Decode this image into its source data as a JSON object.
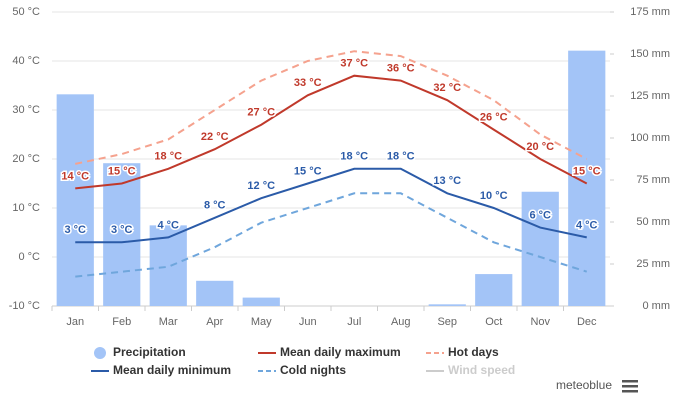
{
  "chart_data": {
    "type": "combo",
    "categories": [
      "Jan",
      "Feb",
      "Mar",
      "Apr",
      "May",
      "Jun",
      "Jul",
      "Aug",
      "Sep",
      "Oct",
      "Nov",
      "Dec"
    ],
    "ylim": [
      -10,
      50
    ],
    "yticks": [
      {
        "value": -10,
        "label": "-10 °C"
      },
      {
        "value": 0,
        "label": "0 °C"
      },
      {
        "value": 10,
        "label": "10 °C"
      },
      {
        "value": 20,
        "label": "20 °C"
      },
      {
        "value": 30,
        "label": "30 °C"
      },
      {
        "value": 40,
        "label": "40 °C"
      },
      {
        "value": 50,
        "label": "50 °C"
      }
    ],
    "y2lim": [
      0,
      175
    ],
    "y2ticks": [
      {
        "value": 0,
        "label": "0 mm"
      },
      {
        "value": 25,
        "label": "25 mm"
      },
      {
        "value": 50,
        "label": "50 mm"
      },
      {
        "value": 75,
        "label": "75 mm"
      },
      {
        "value": 100,
        "label": "100 mm"
      },
      {
        "value": 125,
        "label": "125 mm"
      },
      {
        "value": 150,
        "label": "150 mm"
      },
      {
        "value": 175,
        "label": "175 mm"
      }
    ],
    "grid": true,
    "series": [
      {
        "name": "Precipitation",
        "type": "column",
        "axis": "y2",
        "color": "#a3c4f7",
        "values": [
          126,
          85,
          48,
          15,
          5,
          0,
          0,
          0,
          1,
          19,
          68,
          152
        ]
      },
      {
        "name": "Mean daily maximum",
        "type": "line",
        "color": "#c0392b",
        "dashed": false,
        "values": [
          14,
          15,
          18,
          22,
          27,
          33,
          37,
          36,
          32,
          26,
          20,
          15
        ],
        "value_labels": [
          "14 °C",
          "15 °C",
          "18 °C",
          "22 °C",
          "27 °C",
          "33 °C",
          "37 °C",
          "36 °C",
          "32 °C",
          "26 °C",
          "20 °C",
          "15 °C"
        ]
      },
      {
        "name": "Hot days",
        "type": "line",
        "color": "#f5a28e",
        "dashed": true,
        "values": [
          19,
          21,
          24,
          30,
          36,
          40,
          42,
          41,
          37,
          32,
          25,
          20
        ]
      },
      {
        "name": "Mean daily minimum",
        "type": "line",
        "color": "#2b5ba8",
        "dashed": false,
        "values": [
          3,
          3,
          4,
          8,
          12,
          15,
          18,
          18,
          13,
          10,
          6,
          4
        ],
        "value_labels": [
          "3 °C",
          "3 °C",
          "4 °C",
          "8 °C",
          "12 °C",
          "15 °C",
          "18 °C",
          "18 °C",
          "13 °C",
          "10 °C",
          "6 °C",
          "4 °C"
        ]
      },
      {
        "name": "Cold nights",
        "type": "line",
        "color": "#6fa6dc",
        "dashed": true,
        "values": [
          -4,
          -3,
          -2,
          2,
          7,
          10,
          13,
          13,
          8,
          3,
          0,
          -3
        ]
      },
      {
        "name": "Wind speed",
        "type": "line",
        "color": "#cccccc",
        "dashed": false,
        "visible": false
      }
    ],
    "brand": "meteoblue"
  }
}
